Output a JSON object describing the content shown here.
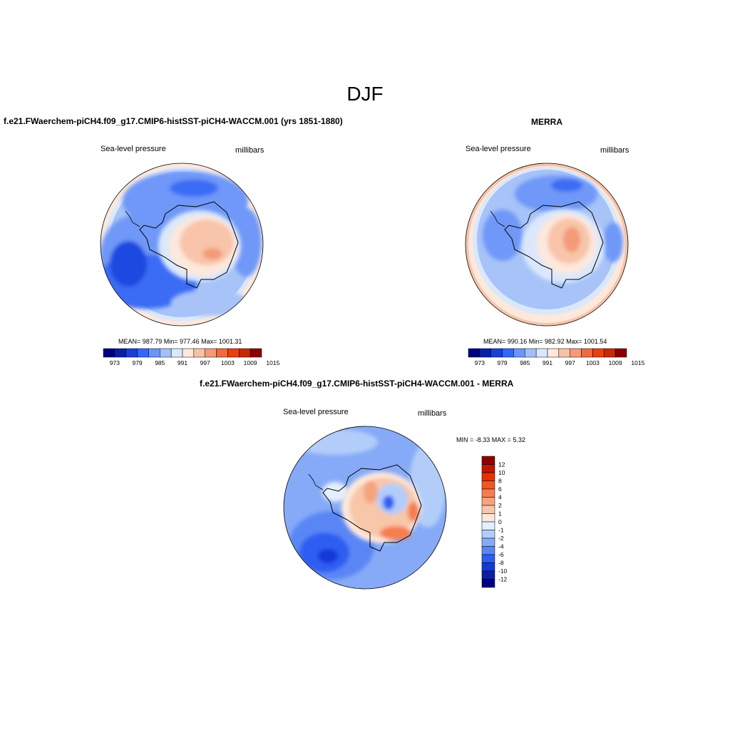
{
  "figure": {
    "title": "DJF"
  },
  "panels": {
    "model": {
      "title": "f.e21.FWaerchem-piCH4.f09_g17.CMIP6-histSST-piCH4-WACCM.001 (yrs 1851-1880)",
      "left_label": "Sea-level pressure",
      "right_label": "millibars",
      "stats": "MEAN= 987.79  Min= 977.46  Max= 1001.31",
      "mean": 987.79,
      "min": 977.46,
      "max": 1001.31
    },
    "obs": {
      "title": "MERRA",
      "left_label": "Sea-level pressure",
      "right_label": "millibars",
      "stats": "MEAN= 990.16  Min= 982.92  Max= 1001.54",
      "mean": 990.16,
      "min": 982.92,
      "max": 1001.54
    },
    "diff": {
      "title": "f.e21.FWaerchem-piCH4.f09_g17.CMIP6-histSST-piCH4-WACCM.001 - MERRA",
      "left_label": "Sea-level pressure",
      "right_label": "millibars",
      "stats": "MIN =  -8.33 MAX =   5.32",
      "min": -8.33,
      "max": 5.32
    }
  },
  "colorbars": {
    "abs": {
      "colors": [
        "#00007f",
        "#0a1fa8",
        "#1a3fd6",
        "#3366ff",
        "#6b94fa",
        "#a3bff8",
        "#d9e8fb",
        "#ffe9d9",
        "#f8c1a6",
        "#f49a78",
        "#f06a3e",
        "#e9400f",
        "#c62a04",
        "#8b0000"
      ],
      "tick_labels": [
        "973",
        "979",
        "985",
        "991",
        "997",
        "1003",
        "1009",
        "1015"
      ]
    },
    "diff": {
      "colors": [
        "#8b0000",
        "#c01500",
        "#e53000",
        "#f45524",
        "#f57e4f",
        "#f6a37c",
        "#f8c6a8",
        "#fde9dc",
        "#e3effd",
        "#b2cdfa",
        "#86aaf7",
        "#5a86f5",
        "#2f5df2",
        "#1339d7",
        "#0a1ea8",
        "#000080"
      ],
      "tick_labels": [
        "12",
        "10",
        "8",
        "6",
        "4",
        "2",
        "1",
        "0",
        "-1",
        "-2",
        "-4",
        "-6",
        "-8",
        "-10",
        "-12"
      ]
    }
  }
}
